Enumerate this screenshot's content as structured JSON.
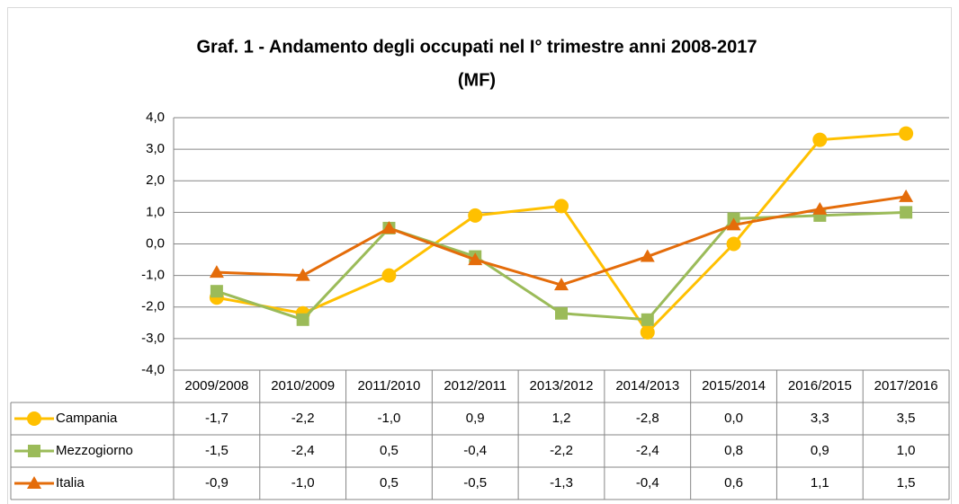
{
  "chart_data": {
    "type": "line",
    "title": "Graf. 1 - Andamento degli occupati nel I° trimestre anni 2008-2017",
    "subtitle": "(MF)",
    "categories": [
      "2009/2008",
      "2010/2009",
      "2011/2010",
      "2012/2011",
      "2013/2012",
      "2014/2013",
      "2015/2014",
      "2016/2015",
      "2017/2016"
    ],
    "series": [
      {
        "name": "Campania",
        "color": "#ffc000",
        "marker": "circle",
        "values": [
          -1.7,
          -2.2,
          -1.0,
          0.9,
          1.2,
          -2.8,
          0.0,
          3.3,
          3.5
        ],
        "value_labels": [
          "-1,7",
          "-2,2",
          "-1,0",
          "0,9",
          "1,2",
          "-2,8",
          "0,0",
          "3,3",
          "3,5"
        ]
      },
      {
        "name": "Mezzogiorno",
        "color": "#9bbb59",
        "marker": "square",
        "values": [
          -1.5,
          -2.4,
          0.5,
          -0.4,
          -2.2,
          -2.4,
          0.8,
          0.9,
          1.0
        ],
        "value_labels": [
          "-1,5",
          "-2,4",
          "0,5",
          "-0,4",
          "-2,2",
          "-2,4",
          "0,8",
          "0,9",
          "1,0"
        ]
      },
      {
        "name": "Italia",
        "color": "#e46c0a",
        "marker": "triangle",
        "values": [
          -0.9,
          -1.0,
          0.5,
          -0.5,
          -1.3,
          -0.4,
          0.6,
          1.1,
          1.5
        ],
        "value_labels": [
          "-0,9",
          "-1,0",
          "0,5",
          "-0,5",
          "-1,3",
          "-0,4",
          "0,6",
          "1,1",
          "1,5"
        ]
      }
    ],
    "ylim": [
      -4,
      4
    ],
    "yticks": [
      {
        "value": -4,
        "label": "-4,0"
      },
      {
        "value": -3,
        "label": "-3,0"
      },
      {
        "value": -2,
        "label": "-2,0"
      },
      {
        "value": -1,
        "label": "-1,0"
      },
      {
        "value": 0,
        "label": "0,0"
      },
      {
        "value": 1,
        "label": "1,0"
      },
      {
        "value": 2,
        "label": "2,0"
      },
      {
        "value": 3,
        "label": "3,0"
      },
      {
        "value": 4,
        "label": "4,0"
      }
    ],
    "grid": true
  }
}
